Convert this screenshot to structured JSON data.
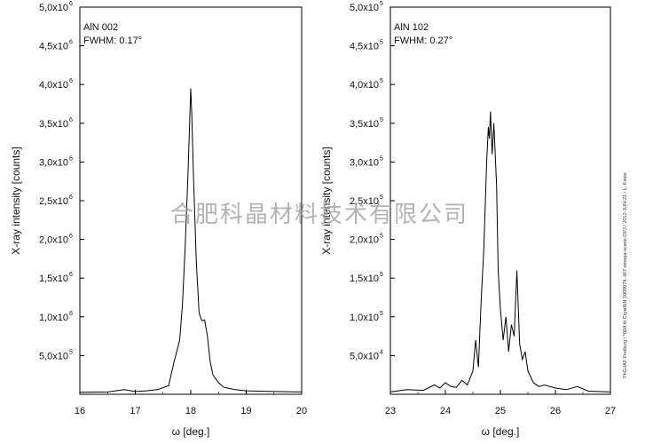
{
  "watermark": "合肥科晶材料技术有限公司",
  "side_note": "FhG-IAF Freiburg / *004 th CrystAlN 1000074 -W7 omega-scans.OPJ / 2012-JUN-21 / L. Kirste",
  "chart_data": [
    {
      "type": "line",
      "panel_title": "AlN 002",
      "annotation": "FWHM: 0.17°",
      "xlabel": "ω [deg.]",
      "ylabel": "X-ray intensity [counts]",
      "xlim": [
        16,
        20
      ],
      "ylim": [
        0,
        5000000
      ],
      "xticks": [
        16,
        17,
        18,
        19,
        20
      ],
      "yticks": [
        {
          "value": 500000,
          "mant": "5,0x10",
          "exp": "5"
        },
        {
          "value": 1000000,
          "mant": "1,0x10",
          "exp": "6"
        },
        {
          "value": 1500000,
          "mant": "1,5x10",
          "exp": "6"
        },
        {
          "value": 2000000,
          "mant": "2,0x10",
          "exp": "6"
        },
        {
          "value": 2500000,
          "mant": "2,5x10",
          "exp": "6"
        },
        {
          "value": 3000000,
          "mant": "3,0x10",
          "exp": "6"
        },
        {
          "value": 3500000,
          "mant": "3,5x10",
          "exp": "6"
        },
        {
          "value": 4000000,
          "mant": "4,0x10",
          "exp": "6"
        },
        {
          "value": 4500000,
          "mant": "4,5x10",
          "exp": "6"
        },
        {
          "value": 5000000,
          "mant": "5,0x10",
          "exp": "6"
        }
      ],
      "grid": false,
      "x": [
        16.0,
        16.5,
        16.8,
        17.0,
        17.2,
        17.4,
        17.6,
        17.7,
        17.75,
        17.8,
        17.85,
        17.9,
        17.95,
        18.0,
        18.02,
        18.05,
        18.1,
        18.15,
        18.2,
        18.25,
        18.3,
        18.35,
        18.4,
        18.5,
        18.6,
        18.8,
        19.0,
        19.5,
        20.0
      ],
      "y": [
        25000,
        30000,
        60000,
        35000,
        45000,
        60000,
        110000,
        420000,
        560000,
        700000,
        1150000,
        1900000,
        2850000,
        3950000,
        3600000,
        2800000,
        1700000,
        1050000,
        950000,
        960000,
        750000,
        420000,
        250000,
        150000,
        90000,
        60000,
        45000,
        35000,
        30000
      ]
    },
    {
      "type": "line",
      "panel_title": "AlN 102",
      "annotation": "FWHM: 0.27°",
      "xlabel": "ω [deg.]",
      "ylabel": "X-ray intensity [counts]",
      "xlim": [
        23,
        27
      ],
      "ylim": [
        0,
        500000
      ],
      "xticks": [
        23,
        24,
        25,
        26,
        27
      ],
      "yticks": [
        {
          "value": 50000,
          "mant": "5,0x10",
          "exp": "4"
        },
        {
          "value": 100000,
          "mant": "1,0x10",
          "exp": "5"
        },
        {
          "value": 150000,
          "mant": "1,5x10",
          "exp": "5"
        },
        {
          "value": 200000,
          "mant": "2,0x10",
          "exp": "5"
        },
        {
          "value": 250000,
          "mant": "2,5x10",
          "exp": "5"
        },
        {
          "value": 300000,
          "mant": "3,0x10",
          "exp": "5"
        },
        {
          "value": 350000,
          "mant": "3,5x10",
          "exp": "5"
        },
        {
          "value": 400000,
          "mant": "4,0x10",
          "exp": "5"
        },
        {
          "value": 450000,
          "mant": "4,5x10",
          "exp": "5"
        },
        {
          "value": 500000,
          "mant": "5,0x10",
          "exp": "5"
        }
      ],
      "grid": false,
      "x": [
        23.0,
        23.3,
        23.6,
        23.8,
        23.9,
        24.0,
        24.1,
        24.2,
        24.3,
        24.4,
        24.5,
        24.55,
        24.6,
        24.65,
        24.7,
        24.75,
        24.78,
        24.8,
        24.82,
        24.85,
        24.88,
        24.9,
        24.93,
        24.96,
        25.0,
        25.05,
        25.1,
        25.15,
        25.2,
        25.25,
        25.3,
        25.35,
        25.4,
        25.45,
        25.5,
        25.6,
        25.7,
        25.8,
        26.0,
        26.2,
        26.4,
        26.6,
        27.0
      ],
      "y": [
        3000,
        6000,
        5000,
        12000,
        8000,
        15000,
        10000,
        9000,
        18000,
        12000,
        30000,
        70000,
        35000,
        120000,
        190000,
        300000,
        345000,
        330000,
        365000,
        310000,
        350000,
        320000,
        270000,
        160000,
        110000,
        70000,
        100000,
        55000,
        90000,
        75000,
        160000,
        65000,
        45000,
        55000,
        30000,
        15000,
        10000,
        12000,
        8000,
        6000,
        10000,
        4000,
        3000
      ]
    }
  ]
}
